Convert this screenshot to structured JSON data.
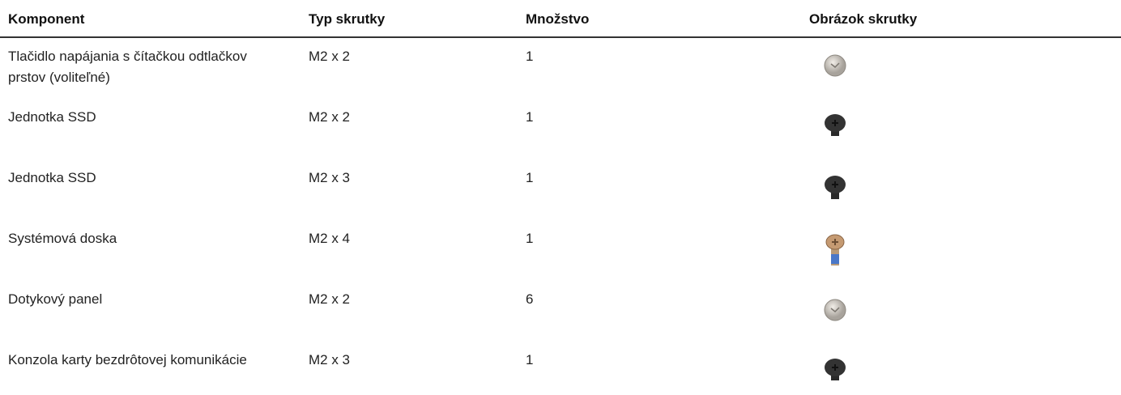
{
  "table": {
    "columns": [
      "Komponent",
      "Typ skrutky",
      "Množstvo",
      "Obrázok skrutky"
    ],
    "rows": [
      [
        "Tlačidlo napájania s čítačkou odtlačkov prstov (voliteľné)",
        "M2 x 2",
        1
      ],
      [
        "Jednotka SSD",
        "M2 x 2",
        1
      ],
      [
        "Jednotka SSD",
        "M2 x 3",
        1
      ],
      [
        "Systémová doska",
        "M2 x 4",
        1
      ],
      [
        "Dotykový panel",
        "M2 x 2",
        6
      ],
      [
        "Konzola karty bezdrôtovej komunikácie",
        "M2 x 3",
        1
      ]
    ]
  }
}
